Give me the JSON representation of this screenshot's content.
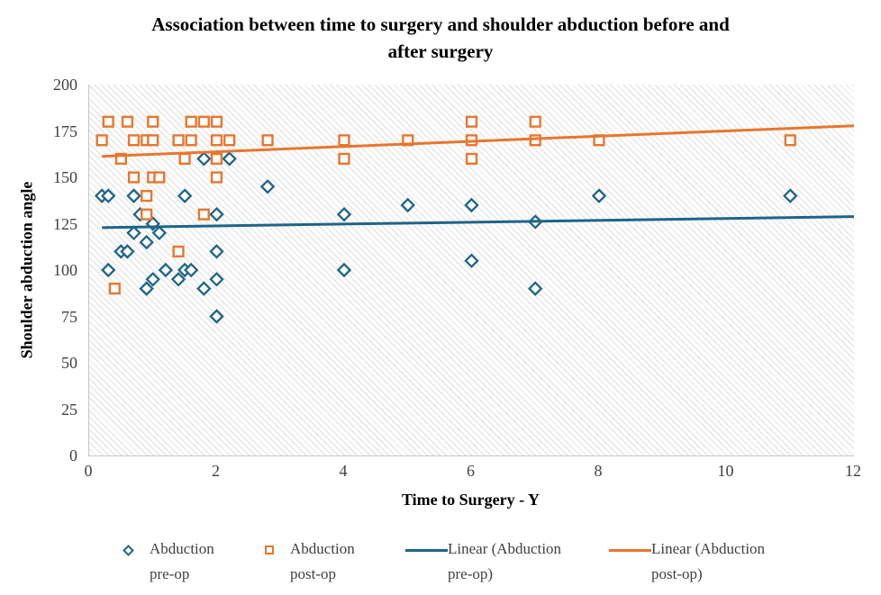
{
  "title": {
    "line1": "Association between time to surgery and shoulder abduction before and",
    "line2": "after surgery"
  },
  "y_axis": {
    "label": "Shoulder abduction angle",
    "min": 0,
    "max": 200,
    "ticks": [
      200,
      175,
      150,
      125,
      100,
      75,
      50,
      25,
      0
    ]
  },
  "x_axis": {
    "label": "Time to Surgery - Y",
    "min": 0,
    "max": 12,
    "ticks": [
      0,
      2,
      4,
      6,
      8,
      10,
      12
    ]
  },
  "legend": {
    "items": [
      {
        "marker": "diamond",
        "line1": "Abduction",
        "line2": "pre-op"
      },
      {
        "marker": "square",
        "line1": "Abduction",
        "line2": "post-op"
      },
      {
        "marker": "line-blue",
        "line1": "Linear (Abduction",
        "line2": "pre-op)"
      },
      {
        "marker": "line-orange",
        "line1": "Linear (Abduction",
        "line2": "post-op)"
      }
    ]
  },
  "colors": {
    "pre_op": "#1f6488",
    "post_op": "#e8762e",
    "tick_text": "#404040",
    "title_text": "#000000"
  },
  "chart_data": {
    "type": "scatter",
    "title": "Association between time to surgery and shoulder abduction before and after surgery",
    "xlabel": "Time to Surgery - Y",
    "ylabel": "Shoulder abduction angle",
    "xlim": [
      0,
      12
    ],
    "ylim": [
      0,
      200
    ],
    "grid": false,
    "legend_position": "bottom",
    "plot_background": "diagonal-hatch",
    "series": [
      {
        "name": "Abduction pre-op",
        "marker": "diamond",
        "color": "#1f6488",
        "points": [
          [
            0.2,
            140
          ],
          [
            0.3,
            140
          ],
          [
            0.3,
            100
          ],
          [
            0.5,
            110
          ],
          [
            0.6,
            110
          ],
          [
            0.7,
            140
          ],
          [
            0.7,
            120
          ],
          [
            0.8,
            130
          ],
          [
            0.9,
            115
          ],
          [
            0.9,
            90
          ],
          [
            1.0,
            125
          ],
          [
            1.0,
            95
          ],
          [
            1.1,
            120
          ],
          [
            1.2,
            100
          ],
          [
            1.4,
            95
          ],
          [
            1.5,
            140
          ],
          [
            1.5,
            100
          ],
          [
            1.6,
            100
          ],
          [
            1.8,
            160
          ],
          [
            1.8,
            90
          ],
          [
            2.0,
            130
          ],
          [
            2.0,
            110
          ],
          [
            2.0,
            95
          ],
          [
            2.0,
            75
          ],
          [
            2.2,
            160
          ],
          [
            2.8,
            145
          ],
          [
            4.0,
            130
          ],
          [
            4.0,
            100
          ],
          [
            5.0,
            135
          ],
          [
            6.0,
            135
          ],
          [
            6.0,
            105
          ],
          [
            7.0,
            126
          ],
          [
            7.0,
            90
          ],
          [
            8.0,
            140
          ],
          [
            11.0,
            140
          ]
        ]
      },
      {
        "name": "Abduction post-op",
        "marker": "square",
        "color": "#e8762e",
        "points": [
          [
            0.2,
            170
          ],
          [
            0.3,
            180
          ],
          [
            0.4,
            90
          ],
          [
            0.5,
            160
          ],
          [
            0.6,
            180
          ],
          [
            0.7,
            170
          ],
          [
            0.7,
            150
          ],
          [
            0.9,
            170
          ],
          [
            0.9,
            140
          ],
          [
            0.9,
            130
          ],
          [
            1.0,
            180
          ],
          [
            1.0,
            170
          ],
          [
            1.0,
            150
          ],
          [
            1.1,
            150
          ],
          [
            1.4,
            170
          ],
          [
            1.4,
            110
          ],
          [
            1.5,
            160
          ],
          [
            1.6,
            180
          ],
          [
            1.6,
            170
          ],
          [
            1.8,
            180
          ],
          [
            1.8,
            130
          ],
          [
            2.0,
            180
          ],
          [
            2.0,
            170
          ],
          [
            2.0,
            160
          ],
          [
            2.0,
            150
          ],
          [
            2.2,
            170
          ],
          [
            2.8,
            170
          ],
          [
            4.0,
            170
          ],
          [
            4.0,
            160
          ],
          [
            5.0,
            170
          ],
          [
            6.0,
            180
          ],
          [
            6.0,
            170
          ],
          [
            6.0,
            160
          ],
          [
            7.0,
            180
          ],
          [
            7.0,
            170
          ],
          [
            8.0,
            170
          ],
          [
            11.0,
            170
          ]
        ]
      }
    ],
    "trendlines": [
      {
        "name": "Linear (Abduction pre-op)",
        "color": "#1f6488",
        "x": [
          0.2,
          12
        ],
        "y": [
          122.9,
          128.8
        ]
      },
      {
        "name": "Linear (Abduction post-op)",
        "color": "#e8762e",
        "x": [
          0.2,
          12
        ],
        "y": [
          161.3,
          177.8
        ]
      }
    ]
  }
}
